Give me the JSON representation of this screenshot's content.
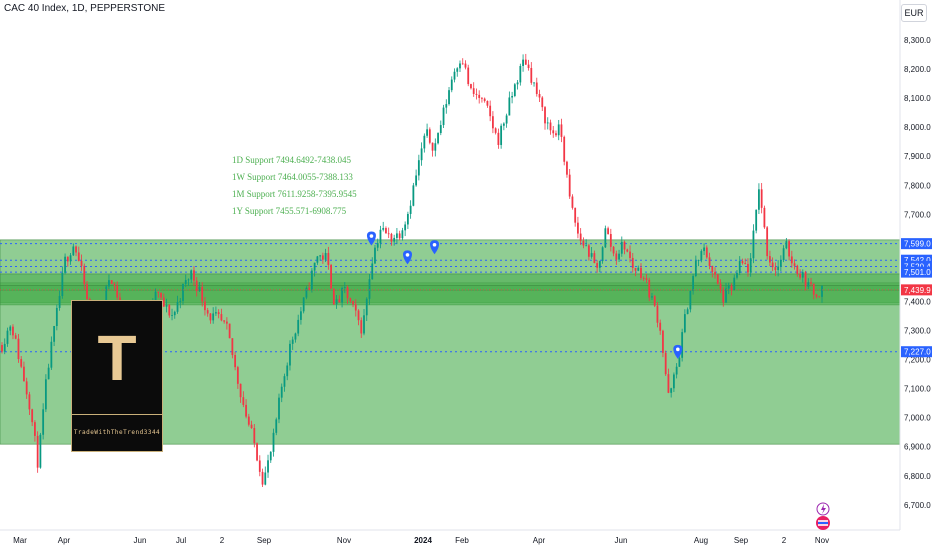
{
  "header": {
    "title": "CAC 40 Index, 1D, PEPPERSTONE",
    "currency": "EUR"
  },
  "supports": [
    "1D Support 7494.6492-7438.045",
    "1W Support 7464.0055-7388.133",
    "1M Support 7611.9258-7395.9545",
    "1Y Support 7455.571-6908.775"
  ],
  "logo": {
    "glyph": "T",
    "name": "TradeWithTheTrend3344"
  },
  "colors": {
    "up": "#089981",
    "down": "#f23645",
    "zone": "#4caf50",
    "dotted": "#2962ff",
    "marker": "#2962ff"
  },
  "chart_data": {
    "type": "candlestick",
    "ylim": [
      6650,
      8350
    ],
    "y_ticks": [
      "8,300.0",
      "8,200.0",
      "8,100.0",
      "8,000.0",
      "7,900.0",
      "7,800.0",
      "7,700.0",
      "7,600.0",
      "7,500.0",
      "7,400.0",
      "7,300.0",
      "7,200.0",
      "7,100.0",
      "7,000.0",
      "6,900.0",
      "6,800.0",
      "6,700.0"
    ],
    "x_ticks": [
      "Mar",
      "Apr",
      "Jun",
      "Jul",
      "2",
      "Sep",
      "Nov",
      "2024",
      "Feb",
      "Apr",
      "Jun",
      "Aug",
      "Sep",
      "2",
      "Nov"
    ],
    "zones": [
      {
        "low": 7395.9545,
        "high": 7611.9258
      },
      {
        "low": 7388.133,
        "high": 7464.0055
      },
      {
        "low": 7438.045,
        "high": 7494.6492
      },
      {
        "low": 6908.775,
        "high": 7455.571
      }
    ],
    "levels": [
      7599.0,
      7542.0,
      7520.4,
      7501.0,
      7227.0
    ],
    "level_labels": [
      "7,599.0",
      "7,542.0",
      "7,520.4",
      "7,501.0",
      "7,227.0"
    ],
    "current_price": 7439.9,
    "current_label": "7,439.9",
    "price_path": [
      7250,
      7330,
      7190,
      7060,
      6840,
      7150,
      7340,
      7540,
      7600,
      7480,
      7300,
      7350,
      7500,
      7400,
      7300,
      7250,
      7200,
      7440,
      7380,
      7350,
      7440,
      7500,
      7430,
      7350,
      7340,
      7300,
      7150,
      7020,
      6910,
      6780,
      6900,
      7100,
      7250,
      7350,
      7450,
      7560,
      7550,
      7380,
      7440,
      7370,
      7300,
      7540,
      7650,
      7620,
      7630,
      7700,
      7840,
      7980,
      7930,
      8050,
      8180,
      8250,
      8120,
      8100,
      8050,
      7950,
      8050,
      8150,
      8240,
      8150,
      8050,
      7980,
      7990,
      7750,
      7620,
      7580,
      7500,
      7650,
      7550,
      7600,
      7520,
      7500,
      7420,
      7320,
      7060,
      7190,
      7380,
      7530,
      7580,
      7490,
      7410,
      7450,
      7530,
      7510,
      7800,
      7550,
      7510,
      7590,
      7520,
      7480,
      7430,
      7440
    ],
    "markers": [
      {
        "x_index": 41,
        "value": 7620
      },
      {
        "x_index": 45,
        "value": 7555
      },
      {
        "x_index": 48,
        "value": 7590
      },
      {
        "x_index": 75,
        "value": 7230
      }
    ]
  }
}
